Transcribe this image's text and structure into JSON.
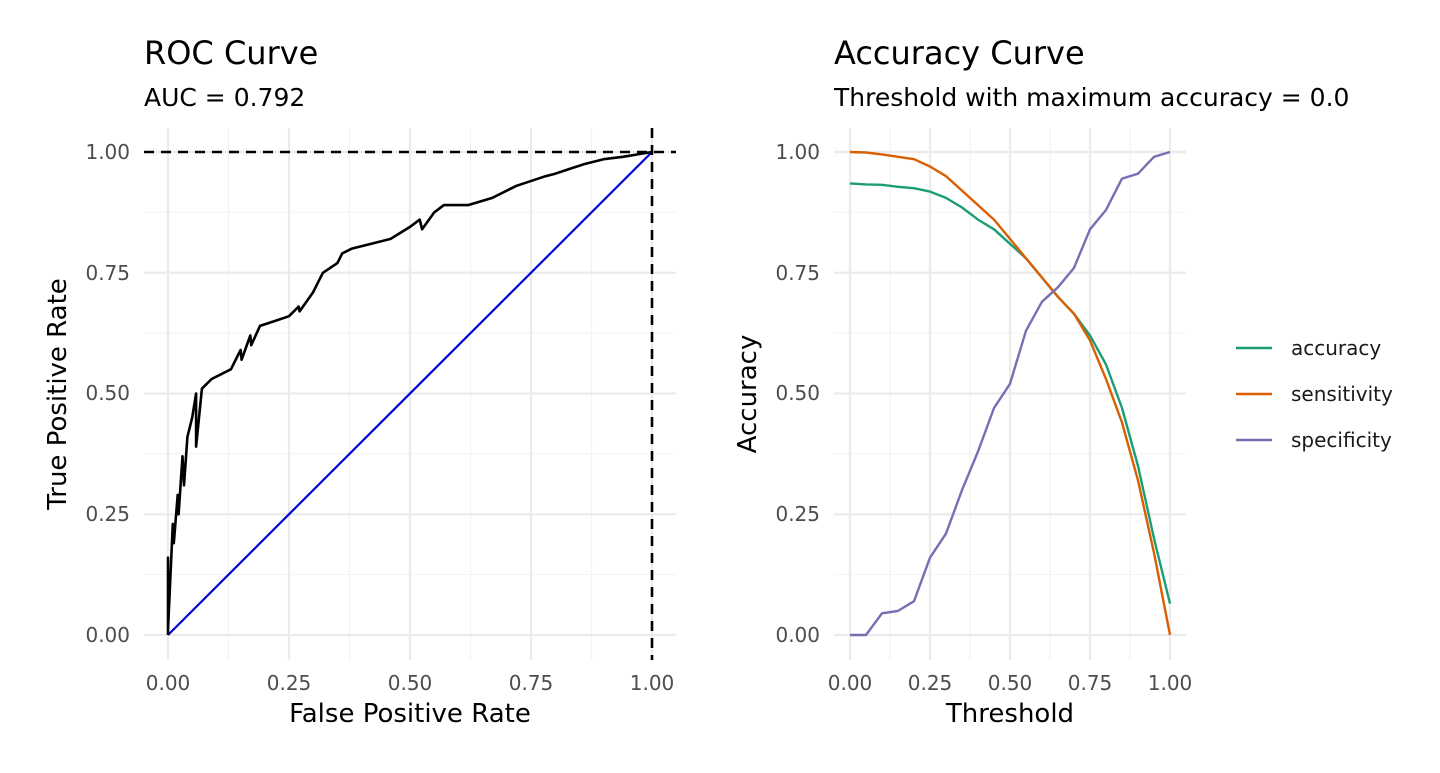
{
  "chart_data": [
    {
      "type": "line",
      "title": "ROC Curve",
      "subtitle": "AUC = 0.792",
      "xlabel": "False Positive Rate",
      "ylabel": "True Positive Rate",
      "xlim": [
        0,
        1
      ],
      "ylim": [
        0,
        1
      ],
      "x_ticks": [
        "0.00",
        "0.25",
        "0.50",
        "0.75",
        "1.00"
      ],
      "y_ticks": [
        "0.00",
        "0.25",
        "0.50",
        "0.75",
        "1.00"
      ],
      "grid": true,
      "series": [
        {
          "color": "#000000",
          "points": [
            [
              0,
              0
            ],
            [
              0,
              0.16
            ],
            [
              0,
              0.01
            ],
            [
              0.005,
              0.12
            ],
            [
              0.01,
              0.23
            ],
            [
              0.012,
              0.19
            ],
            [
              0.02,
              0.29
            ],
            [
              0.022,
              0.25
            ],
            [
              0.03,
              0.37
            ],
            [
              0.033,
              0.31
            ],
            [
              0.04,
              0.41
            ],
            [
              0.05,
              0.45
            ],
            [
              0.058,
              0.5
            ],
            [
              0.058,
              0.39
            ],
            [
              0.07,
              0.51
            ],
            [
              0.09,
              0.53
            ],
            [
              0.13,
              0.55
            ],
            [
              0.15,
              0.59
            ],
            [
              0.152,
              0.57
            ],
            [
              0.17,
              0.62
            ],
            [
              0.172,
              0.6
            ],
            [
              0.19,
              0.64
            ],
            [
              0.22,
              0.65
            ],
            [
              0.25,
              0.66
            ],
            [
              0.27,
              0.68
            ],
            [
              0.272,
              0.67
            ],
            [
              0.3,
              0.71
            ],
            [
              0.31,
              0.73
            ],
            [
              0.32,
              0.75
            ],
            [
              0.35,
              0.77
            ],
            [
              0.36,
              0.79
            ],
            [
              0.38,
              0.8
            ],
            [
              0.42,
              0.81
            ],
            [
              0.46,
              0.82
            ],
            [
              0.5,
              0.845
            ],
            [
              0.52,
              0.86
            ],
            [
              0.525,
              0.84
            ],
            [
              0.55,
              0.875
            ],
            [
              0.57,
              0.89
            ],
            [
              0.62,
              0.89
            ],
            [
              0.67,
              0.905
            ],
            [
              0.7,
              0.92
            ],
            [
              0.72,
              0.93
            ],
            [
              0.78,
              0.95
            ],
            [
              0.8,
              0.955
            ],
            [
              0.83,
              0.965
            ],
            [
              0.86,
              0.975
            ],
            [
              0.9,
              0.985
            ],
            [
              0.94,
              0.99
            ],
            [
              0.97,
              0.995
            ],
            [
              1,
              1
            ]
          ]
        },
        {
          "color": "#0000dd",
          "points": [
            [
              0,
              0
            ],
            [
              1,
              1
            ]
          ]
        }
      ],
      "reference_lines": [
        {
          "orientation": "horizontal",
          "value": 1,
          "style": "dashed",
          "color": "#000000"
        },
        {
          "orientation": "vertical",
          "value": 1,
          "style": "dashed",
          "color": "#000000"
        }
      ]
    },
    {
      "type": "line",
      "title": "Accuracy Curve",
      "subtitle": "Threshold with maximum accuracy = 0.0",
      "xlabel": "Threshold",
      "ylabel": "Accuracy",
      "xlim": [
        0,
        1
      ],
      "ylim": [
        0,
        1
      ],
      "x_ticks": [
        "0.00",
        "0.25",
        "0.50",
        "0.75",
        "1.00"
      ],
      "y_ticks": [
        "0.00",
        "0.25",
        "0.50",
        "0.75",
        "1.00"
      ],
      "grid": true,
      "legend_position": "right",
      "x": [
        0,
        0.05,
        0.1,
        0.15,
        0.2,
        0.25,
        0.3,
        0.35,
        0.4,
        0.45,
        0.5,
        0.55,
        0.6,
        0.65,
        0.7,
        0.75,
        0.8,
        0.85,
        0.9,
        0.95,
        1.0
      ],
      "series": [
        {
          "name": "accuracy",
          "color": "#1b9e77",
          "values": [
            0.935,
            0.933,
            0.932,
            0.928,
            0.925,
            0.918,
            0.905,
            0.885,
            0.86,
            0.84,
            0.81,
            0.78,
            0.74,
            0.7,
            0.665,
            0.62,
            0.56,
            0.47,
            0.35,
            0.2,
            0.065
          ]
        },
        {
          "name": "sensitivity",
          "color": "#d95f02",
          "values": [
            1.0,
            0.999,
            0.995,
            0.99,
            0.985,
            0.97,
            0.95,
            0.92,
            0.89,
            0.86,
            0.82,
            0.78,
            0.74,
            0.7,
            0.665,
            0.61,
            0.53,
            0.44,
            0.32,
            0.17,
            0.0
          ]
        },
        {
          "name": "specificity",
          "color": "#7570b3",
          "values": [
            0.0,
            0.0,
            0.045,
            0.05,
            0.07,
            0.16,
            0.21,
            0.3,
            0.38,
            0.47,
            0.52,
            0.63,
            0.69,
            0.72,
            0.76,
            0.84,
            0.88,
            0.945,
            0.955,
            0.99,
            1.0
          ]
        }
      ]
    }
  ]
}
